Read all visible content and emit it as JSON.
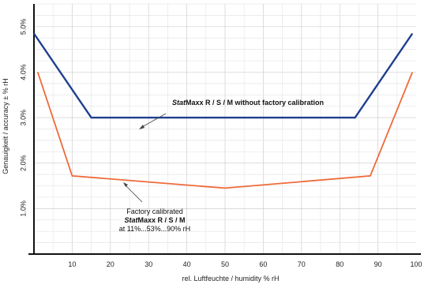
{
  "chart_data": {
    "type": "line",
    "xlabel": "rel. Luftfeuchte / humidity % rH",
    "ylabel": "Genauigkeit / accuracy ± % rH",
    "xlim": [
      0,
      100
    ],
    "ylim": [
      0,
      5.5
    ],
    "grid": true,
    "x_ticks": [
      10,
      20,
      30,
      40,
      50,
      60,
      70,
      80,
      90,
      100
    ],
    "y_ticks": [
      1.0,
      2.0,
      3.0,
      4.0,
      5.0
    ],
    "x_tick_labels": [
      "10",
      "20",
      "30",
      "40",
      "50",
      "60",
      "70",
      "80",
      "90",
      "100"
    ],
    "y_tick_labels": [
      "1.0%",
      "2.0%",
      "3.0%",
      "4.0%",
      "5.0%"
    ],
    "series": [
      {
        "color": "#1f3f8f",
        "points": [
          [
            0,
            4.85
          ],
          [
            15,
            3.0
          ],
          [
            84,
            3.0
          ],
          [
            99,
            4.85
          ]
        ]
      },
      {
        "color": "#ef6a3a",
        "points": [
          [
            1,
            4.0
          ],
          [
            10,
            1.72
          ],
          [
            50,
            1.45
          ],
          [
            88,
            1.72
          ],
          [
            99,
            4.0
          ]
        ]
      }
    ],
    "annotations": [
      {
        "id": "blue",
        "text_italic": "Stat",
        "text_rest": "Maxx R / S / M without factory calibration"
      },
      {
        "id": "orange",
        "line1": "Factory calibrated",
        "line2_italic": "Stat",
        "line2_rest": "Maxx R / S / M",
        "line3": "at 11%...53%...90% rH"
      }
    ]
  }
}
